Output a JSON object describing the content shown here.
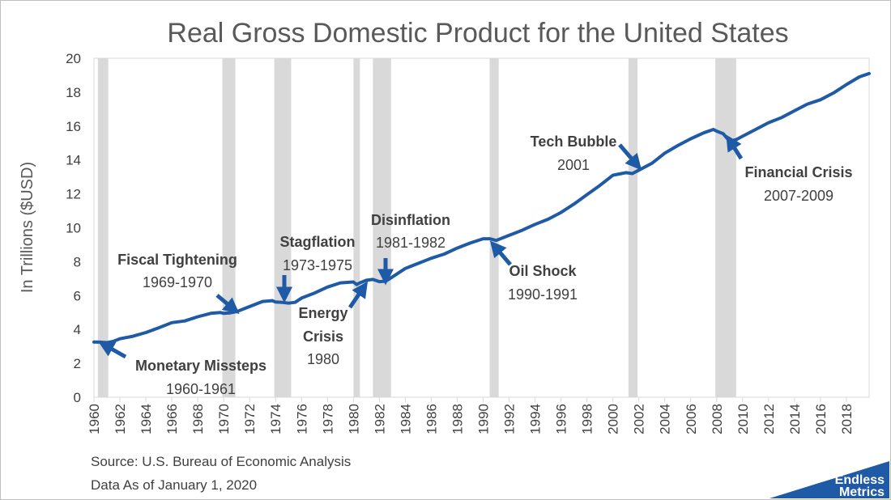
{
  "chart_data": {
    "type": "line",
    "title": "Real Gross Domestic Product for the United States",
    "ylabel": "In Trillions ($USD)",
    "xlabel": "",
    "xlim": [
      1960,
      2019.75
    ],
    "ylim": [
      0,
      20
    ],
    "yticks": [
      0,
      2,
      4,
      6,
      8,
      10,
      12,
      14,
      16,
      18,
      20
    ],
    "xticks": [
      1960,
      1962,
      1964,
      1966,
      1968,
      1970,
      1972,
      1974,
      1976,
      1978,
      1980,
      1982,
      1984,
      1986,
      1988,
      1990,
      1992,
      1994,
      1996,
      1998,
      2000,
      2002,
      2004,
      2006,
      2008,
      2010,
      2012,
      2014,
      2016,
      2018
    ],
    "grid": false,
    "color": "#1f5aa6",
    "series": [
      {
        "x": [
          1960,
          1960.5,
          1961,
          1961.5,
          1962,
          1963,
          1964,
          1965,
          1966,
          1967,
          1968,
          1969,
          1969.75,
          1970,
          1970.5,
          1971,
          1972,
          1973,
          1973.75,
          1974,
          1974.5,
          1975,
          1975.5,
          1976,
          1977,
          1978,
          1979,
          1980,
          1980.25,
          1980.5,
          1981,
          1981.5,
          1982,
          1982.5,
          1983,
          1984,
          1985,
          1986,
          1987,
          1988,
          1989,
          1990,
          1990.5,
          1991,
          1992,
          1993,
          1994,
          1995,
          1996,
          1997,
          1998,
          1999,
          2000,
          2001,
          2001.5,
          2002,
          2003,
          2004,
          2005,
          2006,
          2007,
          2007.75,
          2008,
          2008.5,
          2009,
          2009.5,
          2010,
          2011,
          2012,
          2013,
          2014,
          2015,
          2016,
          2017,
          2018,
          2019,
          2019.75
        ],
        "values": [
          3.26,
          3.25,
          3.22,
          3.3,
          3.45,
          3.6,
          3.82,
          4.1,
          4.4,
          4.5,
          4.75,
          4.95,
          5.0,
          4.95,
          4.98,
          5.05,
          5.35,
          5.65,
          5.7,
          5.62,
          5.6,
          5.55,
          5.6,
          5.85,
          6.15,
          6.5,
          6.75,
          6.8,
          6.65,
          6.75,
          6.9,
          6.95,
          6.82,
          6.85,
          7.1,
          7.6,
          7.9,
          8.2,
          8.45,
          8.8,
          9.1,
          9.35,
          9.35,
          9.25,
          9.55,
          9.85,
          10.2,
          10.5,
          10.9,
          11.4,
          11.95,
          12.5,
          13.1,
          13.25,
          13.2,
          13.4,
          13.8,
          14.4,
          14.85,
          15.25,
          15.6,
          15.8,
          15.7,
          15.55,
          15.1,
          15.2,
          15.4,
          15.8,
          16.2,
          16.5,
          16.9,
          17.3,
          17.55,
          17.95,
          18.45,
          18.9,
          19.1
        ]
      }
    ],
    "recessions": [
      [
        1960.3,
        1961.1
      ],
      [
        1969.9,
        1970.9
      ],
      [
        1973.9,
        1975.2
      ],
      [
        1980.0,
        1980.5
      ],
      [
        1981.5,
        1982.9
      ],
      [
        1990.5,
        1991.2
      ],
      [
        2001.2,
        2001.9
      ],
      [
        2007.9,
        2009.5
      ]
    ],
    "annotations": [
      {
        "label": "Monetary Missteps",
        "sub": "1960-1961"
      },
      {
        "label": "Fiscal Tightening",
        "sub": "1969-1970"
      },
      {
        "label": "Stagflation",
        "sub": "1973-1975"
      },
      {
        "label": "Energy",
        "label2": "Crisis",
        "sub": "1980"
      },
      {
        "label": "Disinflation",
        "sub": "1981-1982"
      },
      {
        "label": "Oil Shock",
        "sub": "1990-1991"
      },
      {
        "label": "Tech Bubble",
        "sub": "2001"
      },
      {
        "label": "Financial Crisis",
        "sub": "2007-2009"
      }
    ]
  },
  "source": {
    "line1": "Source: U.S. Bureau of Economic Analysis",
    "line2": "Data As of January 1, 2020"
  },
  "brand": {
    "line1": "Endless",
    "line2": "Metrics",
    "color": "#1f5aa6"
  }
}
